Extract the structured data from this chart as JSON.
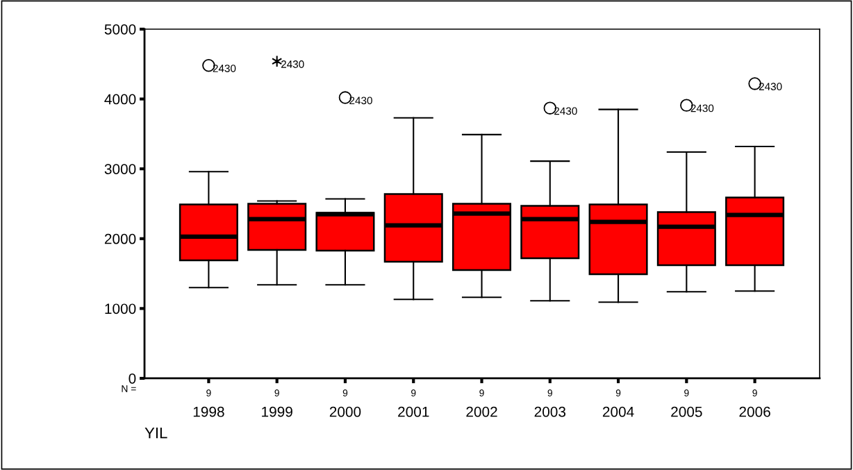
{
  "chart_data": {
    "type": "box",
    "xlabel": "YIL",
    "categories": [
      "1998",
      "1999",
      "2000",
      "2001",
      "2002",
      "2003",
      "2004",
      "2005",
      "2006"
    ],
    "color": "#ff0000",
    "boxes": [
      {
        "low": 1300,
        "q1": 1690,
        "median": 2030,
        "q3": 2490,
        "high": 2960,
        "outliers": [
          4480
        ]
      },
      {
        "low": 1340,
        "q1": 1840,
        "median": 2280,
        "q3": 2500,
        "high": 2540
      },
      {
        "low": 1340,
        "q1": 1830,
        "median": 2350,
        "q3": 2370,
        "high": 2570,
        "outliers": [
          4020
        ]
      },
      {
        "low": 1130,
        "q1": 1670,
        "median": 2190,
        "q3": 2640,
        "high": 3730
      },
      {
        "low": 1160,
        "q1": 1550,
        "median": 2360,
        "q3": 2500,
        "high": 3490
      },
      {
        "low": 1110,
        "q1": 1720,
        "median": 2280,
        "q3": 2470,
        "high": 3110,
        "outliers": [
          3870
        ]
      },
      {
        "low": 1090,
        "q1": 1490,
        "median": 2240,
        "q3": 2490,
        "high": 3850
      },
      {
        "low": 1240,
        "q1": 1620,
        "median": 2170,
        "q3": 2380,
        "high": 3240,
        "outliers": [
          3910
        ]
      },
      {
        "low": 1250,
        "q1": 1620,
        "median": 2340,
        "q3": 2590,
        "high": 3320,
        "outliers": [
          4220
        ]
      }
    ],
    "series": [
      {
        "type": "scatter",
        "values": [
          null,
          4540,
          null,
          null,
          null,
          null,
          null,
          null,
          null
        ],
        "marker": "cross",
        "color": "#000000"
      }
    ],
    "ylim": [
      0,
      5000
    ],
    "yticks": [
      0,
      1000,
      2000,
      3000,
      4000,
      5000
    ],
    "grid": false,
    "annotations": [
      "2430",
      "2430",
      "2430",
      "2430",
      "2430",
      "2430",
      "N =",
      "9",
      "9",
      "9",
      "9",
      "9",
      "9",
      "9",
      "9",
      "9"
    ]
  }
}
